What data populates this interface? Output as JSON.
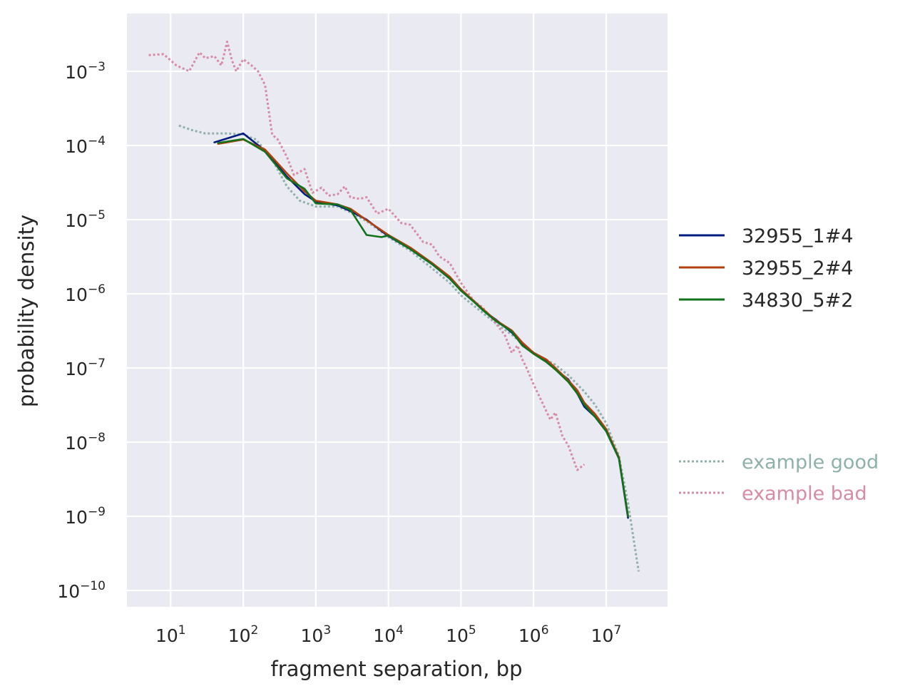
{
  "chart_data": {
    "type": "line",
    "title": "",
    "xlabel": "fragment separation, bp",
    "ylabel": "probability density",
    "xscale": "log",
    "yscale": "log",
    "xlim": [
      2.5,
      70000000
    ],
    "ylim": [
      6e-11,
      0.006
    ],
    "grid": true,
    "background": "#eaeaf2",
    "legend_position": "right",
    "x_ticks": [
      {
        "base": "10",
        "exp": "1",
        "value": 10
      },
      {
        "base": "10",
        "exp": "2",
        "value": 100
      },
      {
        "base": "10",
        "exp": "3",
        "value": 1000
      },
      {
        "base": "10",
        "exp": "4",
        "value": 10000
      },
      {
        "base": "10",
        "exp": "5",
        "value": 100000
      },
      {
        "base": "10",
        "exp": "6",
        "value": 1000000
      },
      {
        "base": "10",
        "exp": "7",
        "value": 10000000
      }
    ],
    "y_ticks": [
      {
        "base": "10",
        "exp": "−3",
        "value": 0.001
      },
      {
        "base": "10",
        "exp": "−4",
        "value": 0.0001
      },
      {
        "base": "10",
        "exp": "−5",
        "value": 1e-05
      },
      {
        "base": "10",
        "exp": "−6",
        "value": 1e-06
      },
      {
        "base": "10",
        "exp": "−7",
        "value": 1e-07
      },
      {
        "base": "10",
        "exp": "−8",
        "value": 1e-08
      },
      {
        "base": "10",
        "exp": "−9",
        "value": 1e-09
      },
      {
        "base": "10",
        "exp": "−10",
        "value": 1e-10
      }
    ],
    "series": [
      {
        "name": "32955_1#4",
        "color": "#001c7f",
        "style": "solid",
        "width": 2.6,
        "points": [
          [
            40,
            0.00011
          ],
          [
            100,
            0.000145
          ],
          [
            200,
            8.5e-05
          ],
          [
            400,
            3.8e-05
          ],
          [
            700,
            2.2e-05
          ],
          [
            1000,
            1.75e-05
          ],
          [
            2000,
            1.55e-05
          ],
          [
            3000,
            1.3e-05
          ],
          [
            5000,
            1e-05
          ],
          [
            8000,
            7e-06
          ],
          [
            10000,
            6e-06
          ],
          [
            20000,
            4e-06
          ],
          [
            40000,
            2.5e-06
          ],
          [
            70000,
            1.6e-06
          ],
          [
            100000,
            1.1e-06
          ],
          [
            150000,
            8e-07
          ],
          [
            200000,
            6e-07
          ],
          [
            300000,
            4.5e-07
          ],
          [
            500000,
            3e-07
          ],
          [
            700000,
            2.1e-07
          ],
          [
            1000000,
            1.6e-07
          ],
          [
            1500000,
            1.25e-07
          ],
          [
            2000000,
            9.5e-08
          ],
          [
            3000000,
            7e-08
          ],
          [
            4000000,
            4.5e-08
          ],
          [
            5000000,
            3e-08
          ],
          [
            7000000,
            2.2e-08
          ],
          [
            10000000,
            1.4e-08
          ],
          [
            15000000,
            6e-09
          ],
          [
            20000000,
            9.5e-10
          ]
        ]
      },
      {
        "name": "32955_2#4",
        "color": "#b1400d",
        "style": "solid",
        "width": 2.6,
        "points": [
          [
            45,
            0.000105
          ],
          [
            100,
            0.00012
          ],
          [
            200,
            8.8e-05
          ],
          [
            400,
            4.2e-05
          ],
          [
            700,
            2.4e-05
          ],
          [
            1000,
            1.8e-05
          ],
          [
            2000,
            1.6e-05
          ],
          [
            3000,
            1.4e-05
          ],
          [
            5000,
            9.8e-06
          ],
          [
            8000,
            7.2e-06
          ],
          [
            10000,
            6.2e-06
          ],
          [
            20000,
            4.2e-06
          ],
          [
            40000,
            2.6e-06
          ],
          [
            70000,
            1.7e-06
          ],
          [
            100000,
            1.15e-06
          ],
          [
            150000,
            8e-07
          ],
          [
            200000,
            6.2e-07
          ],
          [
            300000,
            4.4e-07
          ],
          [
            500000,
            3.2e-07
          ],
          [
            700000,
            2.2e-07
          ],
          [
            1000000,
            1.6e-07
          ],
          [
            1500000,
            1.3e-07
          ],
          [
            2000000,
            1e-07
          ],
          [
            3000000,
            6.8e-08
          ],
          [
            4000000,
            5e-08
          ],
          [
            5000000,
            3.4e-08
          ],
          [
            7000000,
            2.4e-08
          ],
          [
            10000000,
            1.5e-08
          ],
          [
            15000000,
            6.2e-09
          ],
          [
            20000000,
            1e-09
          ]
        ]
      },
      {
        "name": "34830_5#2",
        "color": "#12711c",
        "style": "solid",
        "width": 2.6,
        "points": [
          [
            45,
            0.000108
          ],
          [
            100,
            0.000122
          ],
          [
            200,
            8.2e-05
          ],
          [
            400,
            3.6e-05
          ],
          [
            700,
            2.6e-05
          ],
          [
            1000,
            1.65e-05
          ],
          [
            2000,
            1.6e-05
          ],
          [
            3000,
            1.35e-05
          ],
          [
            5000,
            6.2e-06
          ],
          [
            8000,
            5.8e-06
          ],
          [
            10000,
            6.1e-06
          ],
          [
            20000,
            4e-06
          ],
          [
            40000,
            2.5e-06
          ],
          [
            70000,
            1.6e-06
          ],
          [
            100000,
            1.1e-06
          ],
          [
            150000,
            7.8e-07
          ],
          [
            200000,
            6e-07
          ],
          [
            300000,
            4.3e-07
          ],
          [
            500000,
            3.1e-07
          ],
          [
            700000,
            2e-07
          ],
          [
            1000000,
            1.55e-07
          ],
          [
            1500000,
            1.2e-07
          ],
          [
            2000000,
            9.5e-08
          ],
          [
            3000000,
            6.5e-08
          ],
          [
            4000000,
            4.5e-08
          ],
          [
            5000000,
            3.2e-08
          ],
          [
            7000000,
            2.2e-08
          ],
          [
            10000000,
            1.4e-08
          ],
          [
            15000000,
            6e-09
          ],
          [
            20000000,
            1e-09
          ]
        ]
      },
      {
        "name": "example good",
        "color": "#8fb0ab",
        "style": "dotted",
        "width": 3,
        "points": [
          [
            13,
            0.000185
          ],
          [
            20,
            0.00016
          ],
          [
            30,
            0.000145
          ],
          [
            60,
            0.000145
          ],
          [
            100,
            0.00014
          ],
          [
            150,
            0.00012
          ],
          [
            250,
            6.5e-05
          ],
          [
            400,
            2.8e-05
          ],
          [
            600,
            1.8e-05
          ],
          [
            1000,
            1.5e-05
          ],
          [
            2000,
            1.5e-05
          ],
          [
            3000,
            1.25e-05
          ],
          [
            5000,
            9.5e-06
          ],
          [
            10000,
            5.8e-06
          ],
          [
            20000,
            3.8e-06
          ],
          [
            40000,
            2.2e-06
          ],
          [
            70000,
            1.4e-06
          ],
          [
            100000,
            9.5e-07
          ],
          [
            200000,
            5.5e-07
          ],
          [
            300000,
            4e-07
          ],
          [
            500000,
            2.8e-07
          ],
          [
            1000000,
            1.6e-07
          ],
          [
            2000000,
            1.1e-07
          ],
          [
            3000000,
            8e-08
          ],
          [
            5000000,
            4.8e-08
          ],
          [
            7000000,
            3.2e-08
          ],
          [
            10000000,
            1.8e-08
          ],
          [
            15000000,
            6.5e-09
          ],
          [
            20000000,
            1.5e-09
          ],
          [
            28000000,
            1.8e-10
          ]
        ]
      },
      {
        "name": "example bad",
        "color": "#d68ba6",
        "style": "dotted",
        "width": 3,
        "points": [
          [
            5,
            0.00165
          ],
          [
            8,
            0.0017
          ],
          [
            12,
            0.0012
          ],
          [
            18,
            0.001
          ],
          [
            25,
            0.0018
          ],
          [
            30,
            0.0015
          ],
          [
            40,
            0.0016
          ],
          [
            50,
            0.0012
          ],
          [
            60,
            0.0025
          ],
          [
            70,
            0.0014
          ],
          [
            80,
            0.001
          ],
          [
            100,
            0.00145
          ],
          [
            130,
            0.0012
          ],
          [
            160,
            0.001
          ],
          [
            200,
            0.00065
          ],
          [
            250,
            0.00014
          ],
          [
            300,
            0.00012
          ],
          [
            400,
            7e-05
          ],
          [
            500,
            4e-05
          ],
          [
            700,
            4.8e-05
          ],
          [
            900,
            2.3e-05
          ],
          [
            1200,
            2.7e-05
          ],
          [
            1500,
            2.1e-05
          ],
          [
            2000,
            2.2e-05
          ],
          [
            2500,
            2.8e-05
          ],
          [
            3000,
            2e-05
          ],
          [
            4000,
            1.9e-05
          ],
          [
            5000,
            2e-05
          ],
          [
            7000,
            1.2e-05
          ],
          [
            10000,
            1.4e-05
          ],
          [
            15000,
            9e-06
          ],
          [
            20000,
            8.5e-06
          ],
          [
            30000,
            5e-06
          ],
          [
            40000,
            4.6e-06
          ],
          [
            50000,
            3.2e-06
          ],
          [
            70000,
            2.6e-06
          ],
          [
            100000,
            1.4e-06
          ],
          [
            150000,
            8e-07
          ],
          [
            200000,
            6.5e-07
          ],
          [
            300000,
            4e-07
          ],
          [
            400000,
            2.8e-07
          ],
          [
            500000,
            1.6e-07
          ],
          [
            600000,
            2e-07
          ],
          [
            700000,
            1.3e-07
          ],
          [
            800000,
            1e-07
          ],
          [
            1000000,
            6e-08
          ],
          [
            1300000,
            3.5e-08
          ],
          [
            1700000,
            2e-08
          ],
          [
            2000000,
            2.5e-08
          ],
          [
            2500000,
            1.2e-08
          ],
          [
            3000000,
            9e-09
          ],
          [
            4000000,
            4.2e-09
          ],
          [
            5000000,
            5e-09
          ]
        ]
      }
    ],
    "legend": [
      {
        "label": "32955_1#4",
        "color": "#001c7f",
        "style": "solid",
        "text_color": "#262626"
      },
      {
        "label": "32955_2#4",
        "color": "#b1400d",
        "style": "solid",
        "text_color": "#262626"
      },
      {
        "label": "34830_5#2",
        "color": "#12711c",
        "style": "solid",
        "text_color": "#262626"
      },
      {
        "label": "example good",
        "color": "#8fb0ab",
        "style": "dotted",
        "text_color": "#8fb0ab"
      },
      {
        "label": "example bad",
        "color": "#d68ba6",
        "style": "dotted",
        "text_color": "#d68ba6"
      }
    ]
  }
}
